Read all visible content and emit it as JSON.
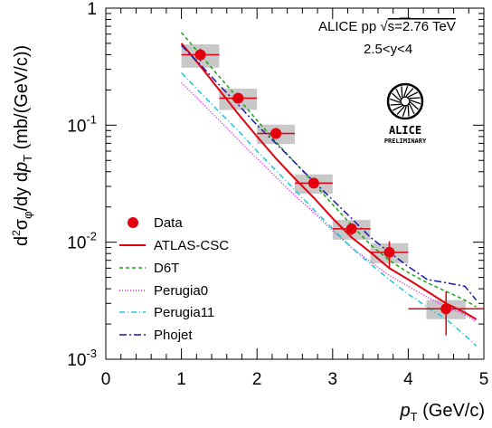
{
  "chart_data": {
    "type": "line",
    "title": "",
    "xlabel": "p_T (GeV/c)",
    "ylabel": "d²σφ/dy dpT (mb/(GeV/c))",
    "xlabel_parts": {
      "p": "p",
      "sub": "T",
      "rest": " (GeV/c)"
    },
    "ylabel_parts": {
      "d": "d",
      "sup": "2",
      "sigma": "σ",
      "phi": "φ",
      "mid": "/dy d",
      "p": "p",
      "T": "T",
      "unit": " (mb/(GeV/c))"
    },
    "xlim": [
      0,
      5
    ],
    "ylim": [
      0.001,
      1
    ],
    "yscale": "log",
    "x_ticks": [
      "0",
      "1",
      "2",
      "3",
      "4",
      "5"
    ],
    "y_ticks": [
      {
        "value": 1,
        "base": "1",
        "exp": ""
      },
      {
        "value": 0.1,
        "base": "10",
        "exp": "-1"
      },
      {
        "value": 0.01,
        "base": "10",
        "exp": "-2"
      },
      {
        "value": 0.001,
        "base": "10",
        "exp": "-3"
      }
    ],
    "annotations": {
      "line1_prefix": "ALICE pp  ",
      "sqrt": "√",
      "line1_suffix": "s=2.76 TeV",
      "line2": "2.5<y<4"
    },
    "logo": {
      "line1": "ALICE",
      "line2": "PRELIMINARY"
    },
    "data_series": {
      "name": "Data",
      "color": "#e3000f",
      "points": [
        {
          "x": 1.25,
          "y": 0.4,
          "xerr": 0.25,
          "sys": 0.09,
          "stat_lo": 0.35,
          "stat_hi": 0.45
        },
        {
          "x": 1.75,
          "y": 0.17,
          "xerr": 0.25,
          "sys": 0.035,
          "stat_lo": 0.155,
          "stat_hi": 0.185
        },
        {
          "x": 2.25,
          "y": 0.085,
          "xerr": 0.25,
          "sys": 0.016,
          "stat_lo": 0.078,
          "stat_hi": 0.092
        },
        {
          "x": 2.75,
          "y": 0.032,
          "xerr": 0.25,
          "sys": 0.006,
          "stat_lo": 0.029,
          "stat_hi": 0.035
        },
        {
          "x": 3.25,
          "y": 0.013,
          "xerr": 0.25,
          "sys": 0.0025,
          "stat_lo": 0.0115,
          "stat_hi": 0.0145
        },
        {
          "x": 3.75,
          "y": 0.0082,
          "xerr": 0.25,
          "sys": 0.0016,
          "stat_lo": 0.006,
          "stat_hi": 0.0102
        },
        {
          "x": 4.5,
          "y": 0.0027,
          "xerr": 0.5,
          "sys": 0.0005,
          "stat_lo": 0.0016,
          "stat_hi": 0.0038
        }
      ]
    },
    "series": [
      {
        "name": "ATLAS-CSC",
        "color": "#e3000f",
        "dash": "",
        "x": [
          1.0,
          1.25,
          1.5,
          1.75,
          2.0,
          2.25,
          2.5,
          2.75,
          3.0,
          3.25,
          3.5,
          3.75,
          4.0,
          4.25,
          4.5,
          4.75,
          4.9
        ],
        "y": [
          0.5,
          0.32,
          0.2,
          0.125,
          0.08,
          0.052,
          0.035,
          0.024,
          0.016,
          0.011,
          0.0082,
          0.006,
          0.0048,
          0.0038,
          0.003,
          0.0025,
          0.0022
        ]
      },
      {
        "name": "D6T",
        "color": "#1aa31a",
        "dash": "4,3",
        "x": [
          1.0,
          1.25,
          1.5,
          1.75,
          2.0,
          2.25,
          2.5,
          2.75,
          3.0,
          3.25,
          3.5,
          3.75,
          4.0,
          4.25,
          4.5,
          4.75,
          4.9
        ],
        "y": [
          0.62,
          0.4,
          0.26,
          0.17,
          0.11,
          0.072,
          0.048,
          0.032,
          0.021,
          0.014,
          0.0095,
          0.007,
          0.0055,
          0.0045,
          0.0038,
          0.0032,
          0.0028
        ]
      },
      {
        "name": "Perugia0",
        "color": "#e020e0",
        "dash": "1,2",
        "x": [
          1.0,
          1.25,
          1.5,
          1.75,
          2.0,
          2.25,
          2.5,
          2.75,
          3.0,
          3.25,
          3.5,
          3.75,
          4.0,
          4.25,
          4.5,
          4.75,
          4.9
        ],
        "y": [
          0.23,
          0.16,
          0.11,
          0.075,
          0.052,
          0.036,
          0.025,
          0.018,
          0.0125,
          0.009,
          0.0068,
          0.0052,
          0.0042,
          0.0034,
          0.0028,
          0.0024,
          0.0021
        ]
      },
      {
        "name": "Perugia11",
        "color": "#18c8d8",
        "dash": "6,3,1,3",
        "x": [
          1.0,
          1.25,
          1.5,
          1.75,
          2.0,
          2.25,
          2.5,
          2.75,
          3.0,
          3.25,
          3.5,
          3.75,
          4.0,
          4.25,
          4.5,
          4.75,
          4.9
        ],
        "y": [
          0.28,
          0.19,
          0.13,
          0.09,
          0.06,
          0.041,
          0.028,
          0.019,
          0.013,
          0.009,
          0.0065,
          0.0048,
          0.0036,
          0.0028,
          0.0022,
          0.0016,
          0.0013
        ]
      },
      {
        "name": "Phojet",
        "color": "#1a1aa8",
        "dash": "8,3,2,3",
        "x": [
          1.0,
          1.25,
          1.5,
          1.75,
          2.0,
          2.25,
          2.5,
          2.75,
          3.0,
          3.25,
          3.5,
          3.75,
          4.0,
          4.25,
          4.5,
          4.75,
          4.9
        ],
        "y": [
          0.48,
          0.33,
          0.22,
          0.15,
          0.1,
          0.07,
          0.048,
          0.033,
          0.023,
          0.016,
          0.011,
          0.0082,
          0.0062,
          0.0048,
          0.0045,
          0.0042,
          0.0032
        ]
      }
    ],
    "legend": {
      "position": "bottom-left",
      "entries": [
        "Data",
        "ATLAS-CSC",
        "D6T",
        "Perugia0",
        "Perugia11",
        "Phojet"
      ]
    }
  }
}
